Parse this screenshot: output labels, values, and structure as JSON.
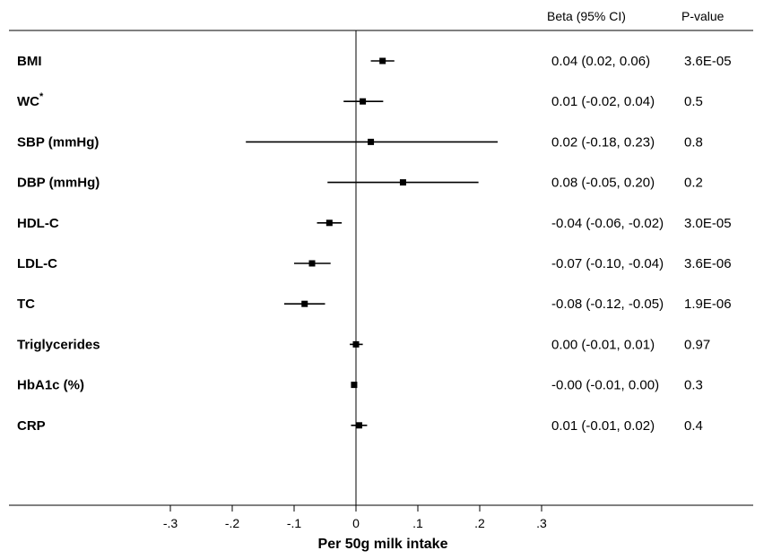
{
  "chart_data": {
    "type": "forest",
    "header": {
      "beta": "Beta (95% CI)",
      "pvalue": "P-value"
    },
    "xlabel": "Per 50g milk intake",
    "xlim": [
      -0.3,
      0.3
    ],
    "xticks": [
      {
        "value": -0.3,
        "label": "-.3"
      },
      {
        "value": -0.2,
        "label": "-.2"
      },
      {
        "value": -0.1,
        "label": "-.1"
      },
      {
        "value": 0,
        "label": "0"
      },
      {
        "value": 0.1,
        "label": ".1"
      },
      {
        "value": 0.2,
        "label": ".2"
      },
      {
        "value": 0.3,
        "label": ".3"
      }
    ],
    "reference_line": 0,
    "rows": [
      {
        "label": "BMI",
        "sup": "",
        "beta": 0.043,
        "lo": 0.024,
        "hi": 0.062,
        "ci_text": "0.04 (0.02, 0.06)",
        "p": "3.6E-05"
      },
      {
        "label": "WC",
        "sup": "*",
        "beta": 0.011,
        "lo": -0.02,
        "hi": 0.044,
        "ci_text": "0.01 (-0.02, 0.04)",
        "p": "0.5"
      },
      {
        "label": "SBP (mmHg)",
        "sup": "",
        "beta": 0.024,
        "lo": -0.178,
        "hi": 0.229,
        "ci_text": "0.02 (-0.18, 0.23)",
        "p": "0.8"
      },
      {
        "label": "DBP (mmHg)",
        "sup": "",
        "beta": 0.076,
        "lo": -0.046,
        "hi": 0.198,
        "ci_text": "0.08 (-0.05, 0.20)",
        "p": "0.2"
      },
      {
        "label": "HDL-C",
        "sup": "",
        "beta": -0.043,
        "lo": -0.063,
        "hi": -0.023,
        "ci_text": "-0.04 (-0.06, -0.02)",
        "p": "3.0E-05"
      },
      {
        "label": "LDL-C",
        "sup": "",
        "beta": -0.071,
        "lo": -0.1,
        "hi": -0.041,
        "ci_text": "-0.07 (-0.10, -0.04)",
        "p": "3.6E-06"
      },
      {
        "label": "TC",
        "sup": "",
        "beta": -0.083,
        "lo": -0.116,
        "hi": -0.05,
        "ci_text": "-0.08 (-0.12, -0.05)",
        "p": "1.9E-06"
      },
      {
        "label": "Triglycerides",
        "sup": "",
        "beta": 0.0,
        "lo": -0.01,
        "hi": 0.011,
        "ci_text": "0.00 (-0.01, 0.01)",
        "p": "0.97"
      },
      {
        "label": "HbA1c (%)",
        "sup": "",
        "beta": -0.003,
        "lo": -0.006,
        "hi": 0.0,
        "ci_text": "-0.00 (-0.01, 0.00)",
        "p": "0.3"
      },
      {
        "label": "CRP",
        "sup": "",
        "beta": 0.005,
        "lo": -0.008,
        "hi": 0.018,
        "ci_text": "0.01 (-0.01, 0.02)",
        "p": "0.4"
      }
    ]
  }
}
